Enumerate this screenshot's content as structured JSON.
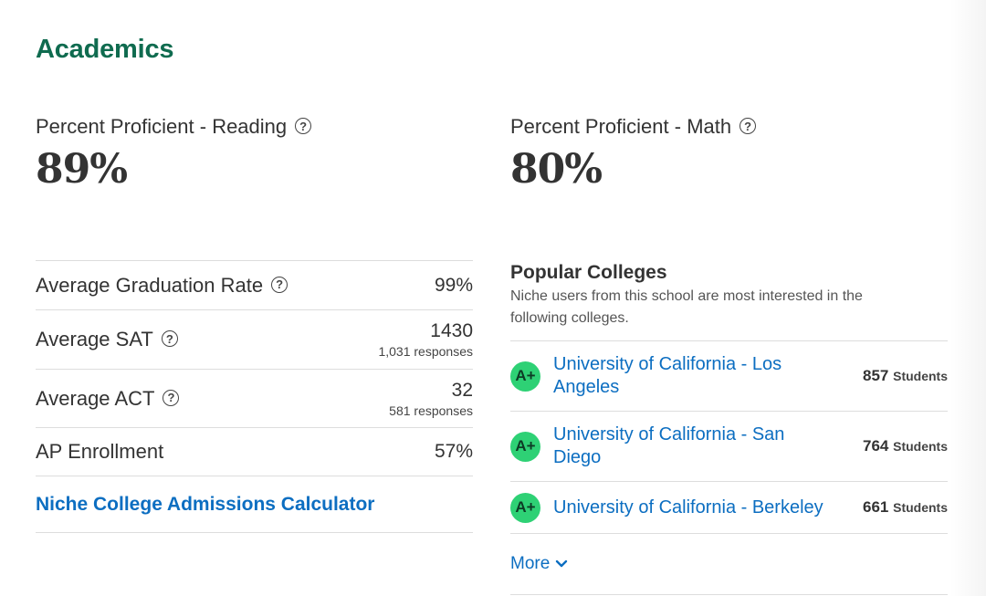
{
  "section": {
    "title": "Academics"
  },
  "help_icon_glyph": "?",
  "reading": {
    "label": "Percent Proficient - Reading",
    "value": "89%"
  },
  "math": {
    "label": "Percent Proficient - Math",
    "value": "80%"
  },
  "stats": [
    {
      "label": "Average Graduation Rate",
      "value": "99%",
      "sub": ""
    },
    {
      "label": "Average SAT",
      "value": "1430",
      "sub": "1,031 responses"
    },
    {
      "label": "Average ACT",
      "value": "32",
      "sub": "581 responses"
    },
    {
      "label": "AP Enrollment",
      "value": "57%",
      "sub": ""
    }
  ],
  "calculator_link": "Niche College Admissions Calculator",
  "popular_colleges": {
    "heading": "Popular Colleges",
    "description": "Niche users from this school are most interested in the following colleges.",
    "students_unit": "Students",
    "items": [
      {
        "grade": "A+",
        "name": "University of California - Los Angeles",
        "count": "857"
      },
      {
        "grade": "A+",
        "name": "University of California - San Diego",
        "count": "764"
      },
      {
        "grade": "A+",
        "name": "University of California - Berkeley",
        "count": "661"
      }
    ],
    "more_label": "More"
  },
  "colors": {
    "brand_green": "#0f6b4f",
    "link_blue": "#0c6ec1",
    "grade_badge": "#2ed175",
    "divider": "#dddddd"
  },
  "icons": {
    "help": "question-circle-icon",
    "more": "chevron-down-icon"
  }
}
